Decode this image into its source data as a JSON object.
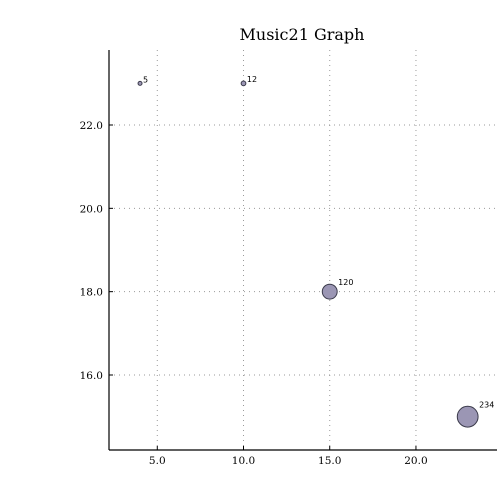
{
  "chart_data": {
    "type": "scatter",
    "title": "Music21 Graph",
    "xlabel": "",
    "ylabel": "",
    "xlim": [
      2.2,
      24.7
    ],
    "ylim": [
      14.2,
      23.8
    ],
    "xticks": [
      5,
      10,
      15,
      20
    ],
    "yticks": [
      16,
      18,
      20,
      22
    ],
    "xtick_labels": [
      "5.0",
      "10.0",
      "15.0",
      "20.0"
    ],
    "ytick_labels": [
      "16.0",
      "18.0",
      "20.0",
      "22.0"
    ],
    "grid": true,
    "points": [
      {
        "x": 4,
        "y": 23,
        "size": 5,
        "label": "5"
      },
      {
        "x": 10,
        "y": 23,
        "size": 12,
        "label": "12"
      },
      {
        "x": 15,
        "y": 18,
        "size": 120,
        "label": "120"
      },
      {
        "x": 23,
        "y": 15,
        "size": 234,
        "label": "234"
      }
    ],
    "colors": {
      "fill": "#9b96b4",
      "stroke": "#3a3a4a"
    }
  }
}
